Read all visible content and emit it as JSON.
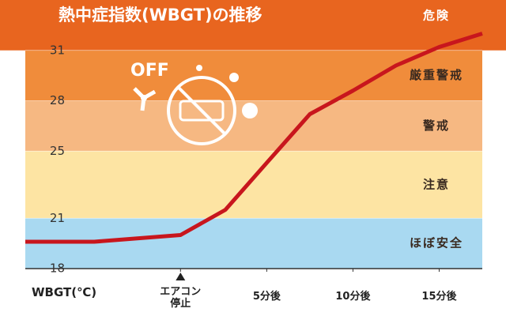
{
  "chart_data": {
    "type": "line",
    "title": "熱中症指数(WBGT)の推移",
    "y_axis_label": "WBGT(℃)",
    "icon_text": "OFF",
    "xlim": [
      -9,
      17.5
    ],
    "ylim": [
      18,
      34
    ],
    "xticks": [
      {
        "value": 0,
        "label": "エアコン停止"
      },
      {
        "value": 5,
        "label": "5分後"
      },
      {
        "value": 10,
        "label": "10分後"
      },
      {
        "value": 15,
        "label": "15分後"
      }
    ],
    "yticks": [
      18,
      21,
      25,
      28,
      31
    ],
    "bands": [
      {
        "label": "危険",
        "from": 31,
        "to": 34,
        "color": "#e8651f"
      },
      {
        "label": "厳重警戒",
        "from": 28,
        "to": 31,
        "color": "#f08c3b"
      },
      {
        "label": "警戒",
        "from": 25,
        "to": 28,
        "color": "#f6b882"
      },
      {
        "label": "注意",
        "from": 21,
        "to": 25,
        "color": "#fde4a3"
      },
      {
        "label": "ほぼ安全",
        "from": 18,
        "to": 21,
        "color": "#a9d9f1"
      }
    ],
    "x": [
      -9,
      -5,
      0,
      2.6,
      5,
      7.5,
      10,
      12.5,
      15,
      17.5
    ],
    "series": [
      {
        "color": "#c8161d",
        "values": [
          19.6,
          19.6,
          20,
          21.5,
          24.3,
          27.2,
          28.6,
          30.1,
          31.2,
          32
        ]
      }
    ]
  }
}
